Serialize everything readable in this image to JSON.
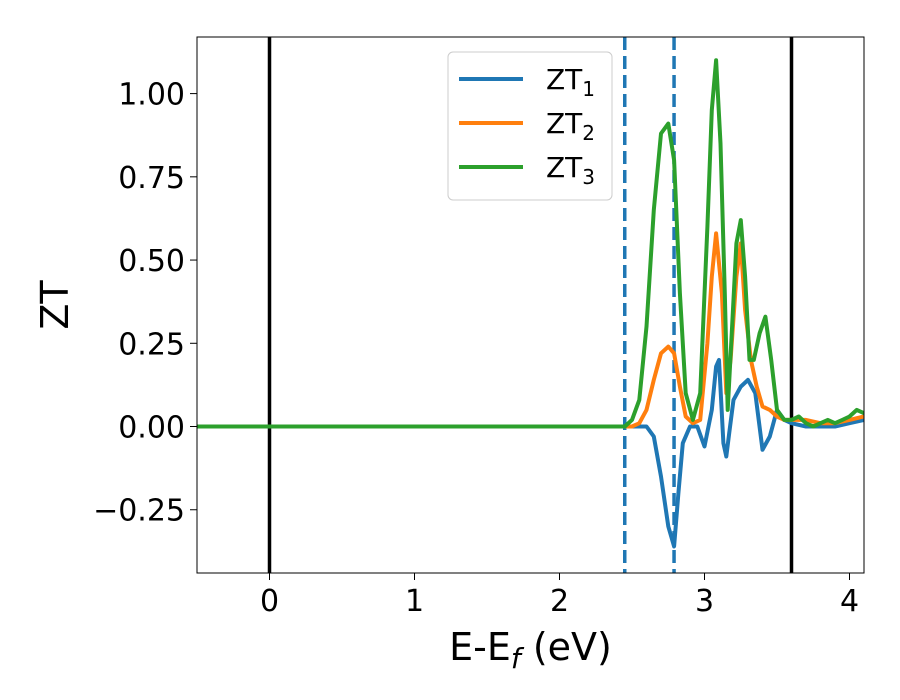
{
  "chart_data": {
    "type": "line",
    "xlabel_main": "E-E",
    "xlabel_sub": "f",
    "xlabel_unit": " (eV)",
    "ylabel": "ZT",
    "xlim": [
      -0.5,
      4.1
    ],
    "ylim": [
      -0.44,
      1.17
    ],
    "xticks": [
      0,
      1,
      2,
      3,
      4
    ],
    "xtick_labels": [
      "0",
      "1",
      "2",
      "3",
      "4"
    ],
    "yticks": [
      -0.25,
      0.0,
      0.25,
      0.5,
      0.75,
      1.0
    ],
    "ytick_labels": [
      "−0.25",
      "0.00",
      "0.25",
      "0.50",
      "0.75",
      "1.00"
    ],
    "legend_position": "top-center",
    "grid": false,
    "vlines": [
      {
        "x": 0.0,
        "style": "solid",
        "color": "#000000"
      },
      {
        "x": 3.6,
        "style": "solid",
        "color": "#000000"
      },
      {
        "x": 2.45,
        "style": "dashed",
        "color": "#1f77b4"
      },
      {
        "x": 2.79,
        "style": "dashed",
        "color": "#1f77b4"
      }
    ],
    "series": [
      {
        "name": "ZT",
        "sub": "1",
        "color": "#1f77b4",
        "x": [
          -0.5,
          2.5,
          2.6,
          2.65,
          2.7,
          2.75,
          2.79,
          2.82,
          2.85,
          2.9,
          2.95,
          3.0,
          3.05,
          3.08,
          3.1,
          3.13,
          3.15,
          3.17,
          3.2,
          3.25,
          3.3,
          3.35,
          3.4,
          3.45,
          3.5,
          3.55,
          3.6,
          3.7,
          3.8,
          3.9,
          4.0,
          4.1
        ],
        "y": [
          0.0,
          0.0,
          0.0,
          -0.03,
          -0.15,
          -0.3,
          -0.36,
          -0.2,
          -0.05,
          0.0,
          0.0,
          -0.06,
          0.05,
          0.18,
          0.2,
          -0.05,
          -0.09,
          -0.02,
          0.08,
          0.12,
          0.14,
          0.1,
          -0.07,
          -0.03,
          0.05,
          0.02,
          0.01,
          0.0,
          0.0,
          0.0,
          0.01,
          0.02
        ]
      },
      {
        "name": "ZT",
        "sub": "2",
        "color": "#ff7f0e",
        "x": [
          -0.5,
          2.5,
          2.55,
          2.6,
          2.65,
          2.7,
          2.75,
          2.79,
          2.83,
          2.87,
          2.92,
          2.97,
          3.02,
          3.05,
          3.08,
          3.12,
          3.15,
          3.18,
          3.22,
          3.25,
          3.28,
          3.32,
          3.36,
          3.4,
          3.45,
          3.5,
          3.55,
          3.6,
          3.7,
          3.8,
          3.9,
          4.0,
          4.1
        ],
        "y": [
          0.0,
          0.0,
          0.01,
          0.05,
          0.14,
          0.22,
          0.24,
          0.22,
          0.12,
          0.03,
          0.01,
          0.02,
          0.25,
          0.45,
          0.58,
          0.4,
          0.1,
          0.2,
          0.45,
          0.55,
          0.35,
          0.2,
          0.12,
          0.06,
          0.05,
          0.03,
          0.02,
          0.02,
          0.02,
          0.01,
          0.01,
          0.02,
          0.03
        ]
      },
      {
        "name": "ZT",
        "sub": "3",
        "color": "#2ca02c",
        "x": [
          -0.5,
          2.45,
          2.5,
          2.55,
          2.6,
          2.65,
          2.7,
          2.75,
          2.79,
          2.83,
          2.87,
          2.92,
          2.97,
          3.02,
          3.05,
          3.08,
          3.11,
          3.14,
          3.16,
          3.19,
          3.22,
          3.25,
          3.28,
          3.31,
          3.34,
          3.38,
          3.42,
          3.46,
          3.5,
          3.55,
          3.6,
          3.65,
          3.7,
          3.75,
          3.8,
          3.85,
          3.9,
          3.95,
          4.0,
          4.05,
          4.1
        ],
        "y": [
          0.0,
          0.0,
          0.02,
          0.08,
          0.3,
          0.65,
          0.88,
          0.91,
          0.8,
          0.4,
          0.1,
          0.02,
          0.1,
          0.6,
          0.95,
          1.1,
          0.85,
          0.4,
          0.05,
          0.3,
          0.55,
          0.62,
          0.45,
          0.2,
          0.2,
          0.28,
          0.33,
          0.2,
          0.05,
          0.02,
          0.02,
          0.03,
          0.01,
          0.0,
          0.01,
          0.02,
          0.01,
          0.02,
          0.03,
          0.05,
          0.04
        ]
      }
    ]
  }
}
